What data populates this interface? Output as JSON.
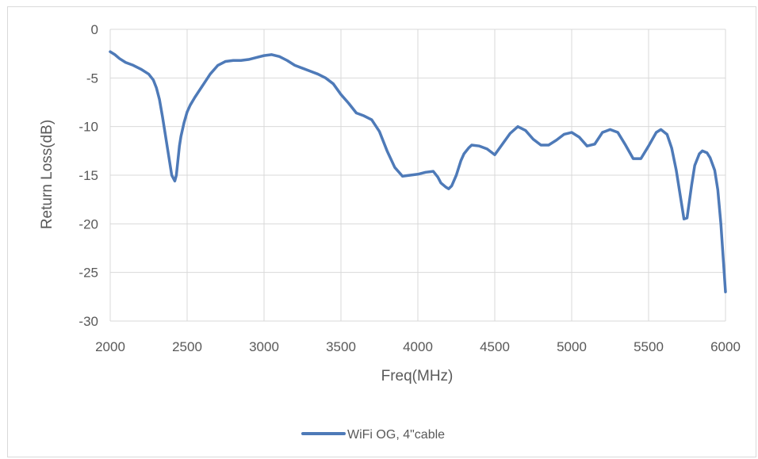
{
  "chart_data": {
    "type": "line",
    "title": "",
    "xlabel": "Freq(MHz)",
    "ylabel": "Return Loss(dB)",
    "xlim": [
      2000,
      6000
    ],
    "ylim": [
      -30,
      0
    ],
    "xticks": [
      2000,
      2500,
      3000,
      3500,
      4000,
      4500,
      5000,
      5500,
      6000
    ],
    "yticks": [
      0,
      -5,
      -10,
      -15,
      -20,
      -25,
      -30
    ],
    "grid": true,
    "legend_position": "bottom",
    "series": [
      {
        "name": "WiFi OG, 4\"cable",
        "color": "#4e7ab8",
        "x": [
          2000,
          2030,
          2060,
          2100,
          2150,
          2200,
          2250,
          2280,
          2300,
          2320,
          2340,
          2360,
          2380,
          2400,
          2410,
          2420,
          2430,
          2440,
          2450,
          2460,
          2480,
          2500,
          2520,
          2550,
          2600,
          2650,
          2700,
          2750,
          2800,
          2850,
          2900,
          2950,
          3000,
          3050,
          3100,
          3150,
          3200,
          3250,
          3300,
          3350,
          3400,
          3450,
          3500,
          3550,
          3600,
          3650,
          3700,
          3750,
          3800,
          3850,
          3900,
          3950,
          4000,
          4050,
          4100,
          4130,
          4150,
          4180,
          4200,
          4220,
          4250,
          4280,
          4300,
          4330,
          4350,
          4400,
          4450,
          4500,
          4550,
          4600,
          4650,
          4700,
          4750,
          4800,
          4850,
          4900,
          4950,
          5000,
          5050,
          5100,
          5150,
          5200,
          5250,
          5300,
          5350,
          5400,
          5450,
          5500,
          5550,
          5580,
          5620,
          5650,
          5680,
          5710,
          5730,
          5750,
          5780,
          5800,
          5830,
          5850,
          5880,
          5900,
          5930,
          5950,
          5970,
          5985,
          6000
        ],
        "values": [
          -2.3,
          -2.6,
          -3.0,
          -3.4,
          -3.7,
          -4.1,
          -4.6,
          -5.2,
          -6.0,
          -7.2,
          -9.0,
          -11.0,
          -13.0,
          -15.0,
          -15.3,
          -15.6,
          -15.0,
          -13.5,
          -12.0,
          -11.0,
          -9.6,
          -8.5,
          -7.8,
          -7.0,
          -5.8,
          -4.6,
          -3.7,
          -3.3,
          -3.2,
          -3.2,
          -3.1,
          -2.9,
          -2.7,
          -2.6,
          -2.8,
          -3.2,
          -3.7,
          -4.0,
          -4.3,
          -4.6,
          -5.0,
          -5.6,
          -6.7,
          -7.6,
          -8.6,
          -8.9,
          -9.3,
          -10.5,
          -12.5,
          -14.2,
          -15.1,
          -15.0,
          -14.9,
          -14.7,
          -14.6,
          -15.2,
          -15.8,
          -16.2,
          -16.4,
          -16.1,
          -15.0,
          -13.5,
          -12.8,
          -12.2,
          -11.9,
          -12.0,
          -12.3,
          -12.9,
          -11.8,
          -10.7,
          -10.0,
          -10.4,
          -11.3,
          -11.9,
          -11.9,
          -11.4,
          -10.8,
          -10.6,
          -11.1,
          -12.0,
          -11.8,
          -10.6,
          -10.3,
          -10.6,
          -11.9,
          -13.3,
          -13.3,
          -12.0,
          -10.6,
          -10.3,
          -10.8,
          -12.2,
          -14.5,
          -17.5,
          -19.5,
          -19.4,
          -16.0,
          -14.0,
          -12.8,
          -12.5,
          -12.7,
          -13.2,
          -14.5,
          -16.5,
          -20.0,
          -23.5,
          -27.0
        ]
      }
    ]
  }
}
